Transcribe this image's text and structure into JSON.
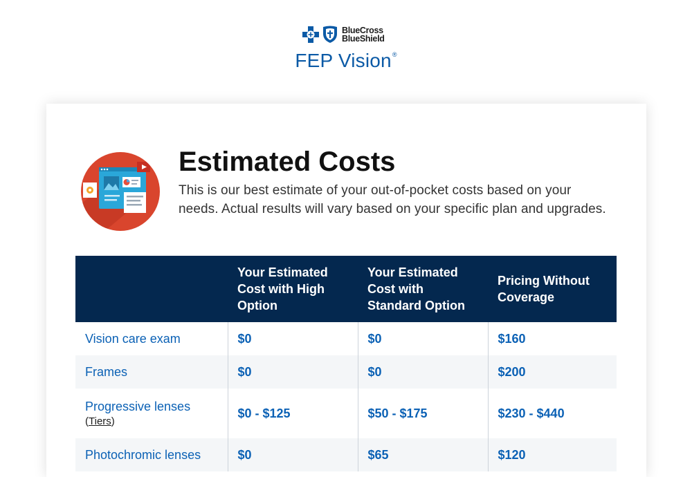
{
  "brand": {
    "line1": "BlueCross",
    "line2": "BlueShield",
    "product": "FEP Vision",
    "registered": "®"
  },
  "colors": {
    "navy": "#04284f",
    "link_blue": "#0b61b5",
    "brand_blue": "#0b5aa6",
    "illustration_red": "#d9452d"
  },
  "icons": [
    "blue-cross-icon",
    "blue-shield-icon",
    "estimate-illustration"
  ],
  "section": {
    "title": "Estimated Costs",
    "description": "This is our best estimate of your out-of-pocket costs based on your needs. Actual results will vary based on your specific plan and upgrades."
  },
  "table": {
    "headers": [
      "",
      "Your Estimated Cost with High Option",
      "Your Estimated Cost with Standard Option",
      "Pricing Without Coverage"
    ],
    "rows": [
      {
        "item": "Vision care exam",
        "high": "$0",
        "standard": "$0",
        "without": "$160"
      },
      {
        "item": "Frames",
        "high": "$0",
        "standard": "$0",
        "without": "$200"
      },
      {
        "item": "Progressive lenses",
        "sub_open": "(",
        "sub_link": "Tiers",
        "sub_close": ")",
        "high": "$0 - $125",
        "standard": "$50 - $175",
        "without": "$230 - $440"
      },
      {
        "item": "Photochromic lenses",
        "high": "$0",
        "standard": "$65",
        "without": "$120"
      }
    ]
  }
}
